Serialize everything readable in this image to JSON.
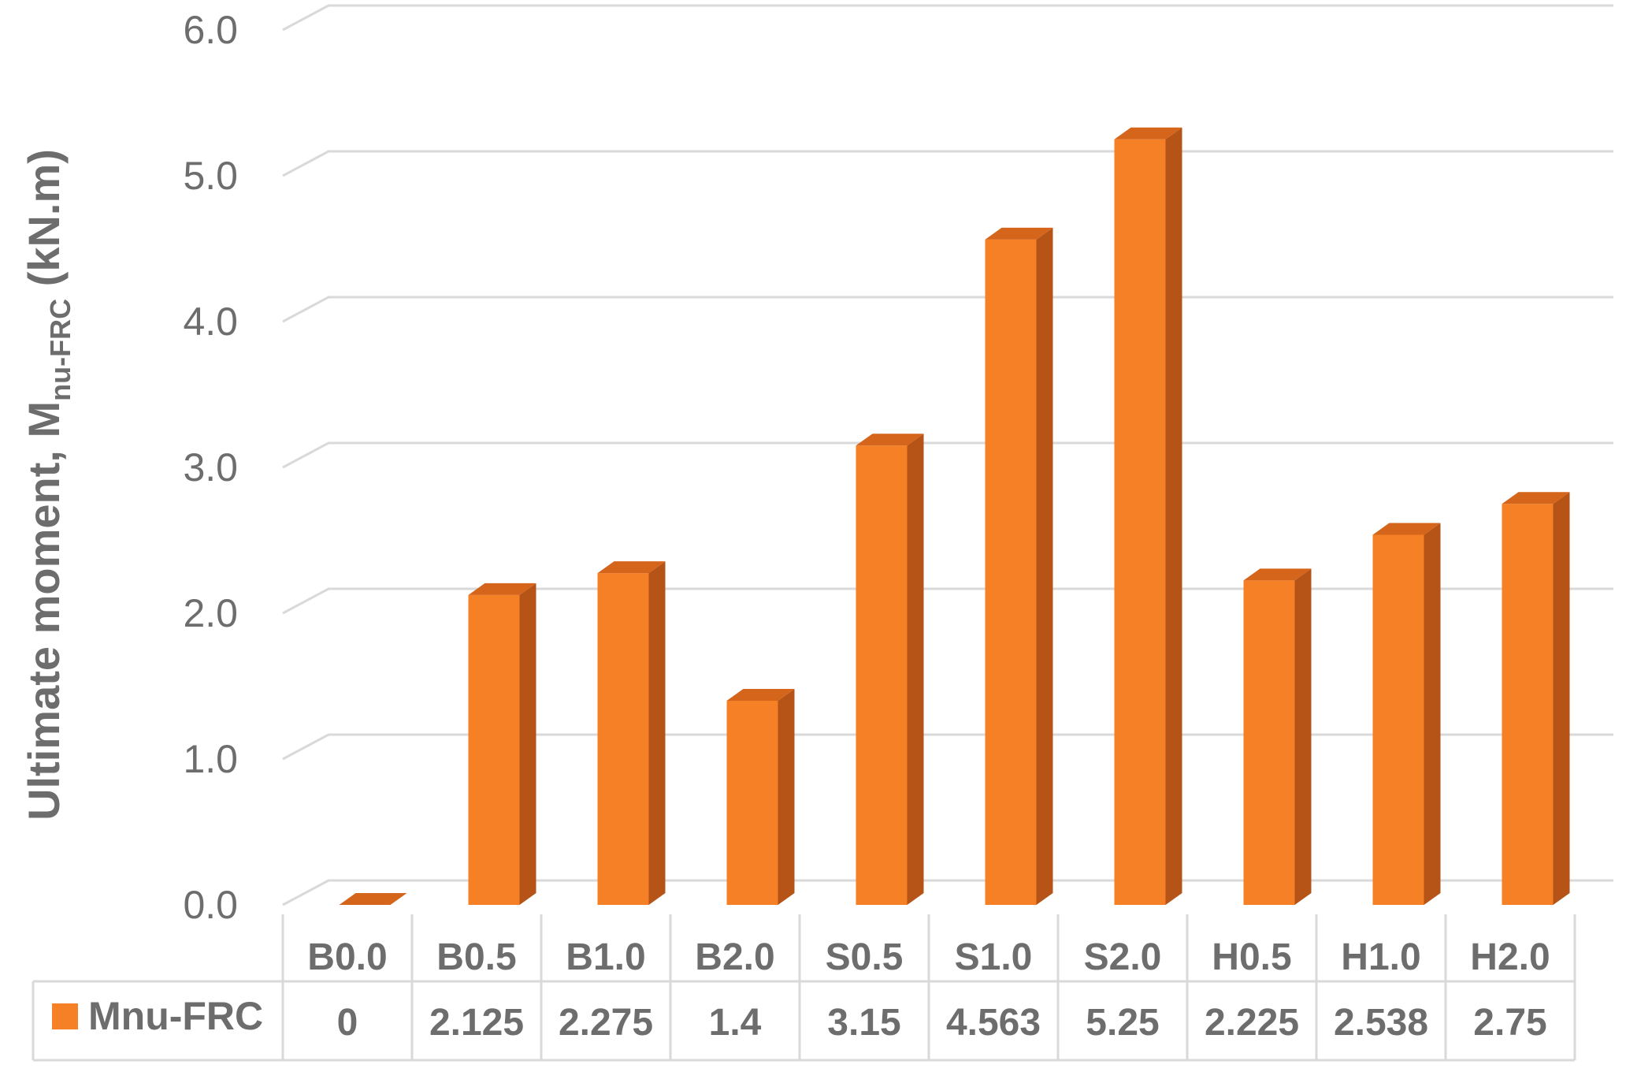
{
  "chart_data": {
    "type": "bar",
    "style": "3d-column with data table",
    "categories": [
      "B0.0",
      "B0.5",
      "B1.0",
      "B2.0",
      "S0.5",
      "S1.0",
      "S2.0",
      "H0.5",
      "H1.0",
      "H2.0"
    ],
    "series": [
      {
        "name": "Mnu-FRC",
        "values": [
          0,
          2.125,
          2.275,
          1.4,
          3.15,
          4.563,
          5.25,
          2.225,
          2.538,
          2.75
        ],
        "value_labels": [
          "0",
          "2.125",
          "2.275",
          "1.4",
          "3.15",
          "4.563",
          "5.25",
          "2.225",
          "2.538",
          "2.75"
        ],
        "color": "#f58025",
        "side_color": "#b55416",
        "top_color": "#d4651b"
      }
    ],
    "ylabel": {
      "prefix": "Ultimate moment, M",
      "subscript": "nu-FRC",
      "suffix": " (kN.m)"
    },
    "ylim": [
      0,
      6
    ],
    "yticks": [
      "0.0",
      "1.0",
      "2.0",
      "3.0",
      "4.0",
      "5.0",
      "6.0"
    ],
    "grid": true,
    "legend": "in data table",
    "colors": {
      "grid": "#d9d9d9",
      "table_border": "#d9d9d9",
      "text": "#6d6d6d"
    }
  }
}
